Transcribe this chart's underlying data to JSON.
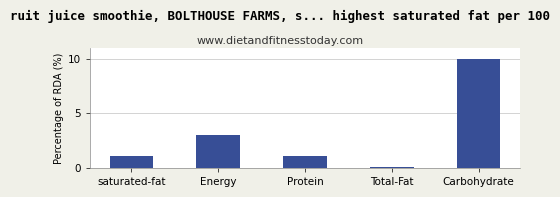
{
  "title": "ruit juice smoothie, BOLTHOUSE FARMS, s... highest saturated fat per 100",
  "subtitle": "www.dietandfitnesstoday.com",
  "categories": [
    "saturated-fat",
    "Energy",
    "Protein",
    "Total-Fat",
    "Carbohydrate"
  ],
  "values": [
    1.1,
    3.0,
    1.1,
    0.05,
    10.0
  ],
  "bar_color": "#374e96",
  "ylabel": "Percentage of RDA (%)",
  "ylim": [
    0,
    11
  ],
  "yticks": [
    0,
    5,
    10
  ],
  "background_color": "#ffffff",
  "fig_background_color": "#f0f0e8",
  "grid_color": "#cccccc",
  "title_fontsize": 9,
  "subtitle_fontsize": 8,
  "ylabel_fontsize": 7,
  "tick_fontsize": 7.5
}
